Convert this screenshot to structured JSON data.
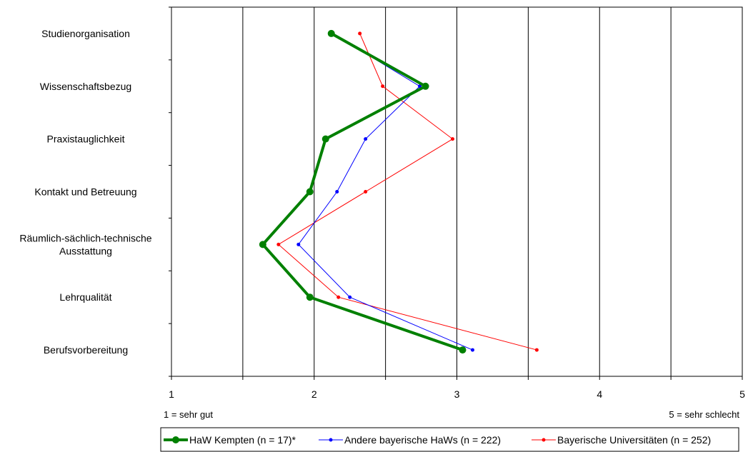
{
  "chart_data": {
    "type": "line",
    "orientation": "horizontal",
    "categories": [
      [
        "Studienorganisation"
      ],
      [
        "Wissenschaftsbezug"
      ],
      [
        "Praxistauglichkeit"
      ],
      [
        "Kontakt und Betreuung"
      ],
      [
        "Räumlich-sächlich-technische",
        "Ausstattung"
      ],
      [
        "Lehrqualität"
      ],
      [
        "Berufsvorbereitung"
      ]
    ],
    "xlim": [
      1,
      5
    ],
    "x_ticks": [
      1,
      2,
      3,
      4,
      5
    ],
    "x_gridlines": [
      1.5,
      2,
      2.5,
      3,
      3.5,
      4,
      4.5,
      5
    ],
    "scale_notes": {
      "left": "1 = sehr gut",
      "right": "5 = sehr schlecht"
    },
    "legend_position": "bottom",
    "series": [
      {
        "name": "HaW Kempten (n = 17)*",
        "color": "#008000",
        "values": [
          2.12,
          2.78,
          2.08,
          1.97,
          1.64,
          1.97,
          3.04
        ]
      },
      {
        "name": "Andere bayerische HaWs (n = 222)",
        "color": "#0000ff",
        "values": [
          2.13,
          2.74,
          2.36,
          2.16,
          1.89,
          2.25,
          3.11
        ]
      },
      {
        "name": "Bayerische Universitäten (n = 252)",
        "color": "#ff0000",
        "values": [
          2.32,
          2.48,
          2.97,
          2.36,
          1.75,
          2.17,
          3.56
        ]
      }
    ]
  }
}
